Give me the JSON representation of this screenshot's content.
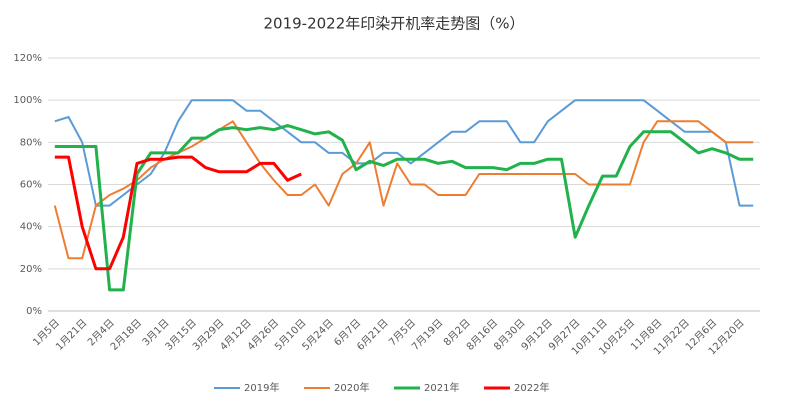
{
  "chart_data": {
    "type": "line",
    "title": "2019-2022年印染开机率走势图（%）",
    "categories": [
      "1月5日",
      null,
      "1月21日",
      null,
      "2月4日",
      null,
      "2月18日",
      null,
      "3月1日",
      null,
      "3月15日",
      null,
      "3月29日",
      null,
      "4月12日",
      null,
      "4月26日",
      null,
      "5月10日",
      null,
      "5月24日",
      null,
      "6月7日",
      null,
      "6月21日",
      null,
      "7月5日",
      null,
      "7月19日",
      null,
      "8月2日",
      null,
      "8月16日",
      null,
      "8月30日",
      null,
      "9月12日",
      null,
      "9月27日",
      null,
      "10月11日",
      null,
      "10月25日",
      null,
      "11月8日",
      null,
      "11月22日",
      null,
      "12月6日",
      null,
      "12月20日",
      null
    ],
    "series": [
      {
        "name": "2019年",
        "color": "#5b9bd5",
        "values": [
          90,
          92,
          80,
          50,
          50,
          55,
          60,
          65,
          75,
          90,
          100,
          100,
          100,
          100,
          95,
          95,
          90,
          85,
          80,
          80,
          75,
          75,
          70,
          70,
          75,
          75,
          70,
          75,
          80,
          85,
          85,
          90,
          90,
          90,
          80,
          80,
          90,
          95,
          100,
          100,
          100,
          100,
          100,
          100,
          95,
          90,
          85,
          85,
          85,
          80,
          50,
          50
        ]
      },
      {
        "name": "2020年",
        "color": "#ed7d31",
        "values": [
          50,
          25,
          25,
          50,
          55,
          58,
          62,
          68,
          72,
          75,
          78,
          82,
          86,
          90,
          80,
          70,
          62,
          55,
          55,
          60,
          50,
          65,
          70,
          80,
          50,
          70,
          60,
          60,
          55,
          55,
          55,
          65,
          65,
          65,
          65,
          65,
          65,
          65,
          65,
          60,
          60,
          60,
          60,
          80,
          90,
          90,
          90,
          90,
          85,
          80,
          80,
          80
        ]
      },
      {
        "name": "2021年",
        "color": "#21b24b",
        "values": [
          78,
          78,
          78,
          78,
          10,
          10,
          65,
          75,
          75,
          75,
          82,
          82,
          86,
          87,
          86,
          87,
          86,
          88,
          86,
          84,
          85,
          81,
          67,
          71,
          69,
          72,
          72,
          72,
          70,
          71,
          68,
          68,
          68,
          67,
          70,
          70,
          72,
          72,
          35,
          50,
          64,
          64,
          78,
          85,
          85,
          85,
          80,
          75,
          77,
          75,
          72,
          72
        ]
      },
      {
        "name": "2022年",
        "color": "#ff0000",
        "values": [
          73,
          73,
          40,
          20,
          20,
          35,
          70,
          72,
          72,
          73,
          73,
          68,
          66,
          66,
          66,
          70,
          70,
          62,
          65,
          null,
          null,
          null,
          null,
          null,
          null,
          null,
          null,
          null,
          null,
          null,
          null,
          null,
          null,
          null,
          null,
          null,
          null,
          null,
          null,
          null,
          null,
          null,
          null,
          null,
          null,
          null,
          null,
          null,
          null,
          null,
          null,
          null
        ]
      }
    ],
    "ylim": [
      0,
      120
    ],
    "yticks": [
      {
        "value": 0,
        "label": "0%"
      },
      {
        "value": 20,
        "label": "20%"
      },
      {
        "value": 40,
        "label": "40%"
      },
      {
        "value": 60,
        "label": "60%"
      },
      {
        "value": 80,
        "label": "80%"
      },
      {
        "value": 100,
        "label": "100%"
      },
      {
        "value": 120,
        "label": "120%"
      }
    ],
    "grid": true,
    "legend": "bottom"
  }
}
